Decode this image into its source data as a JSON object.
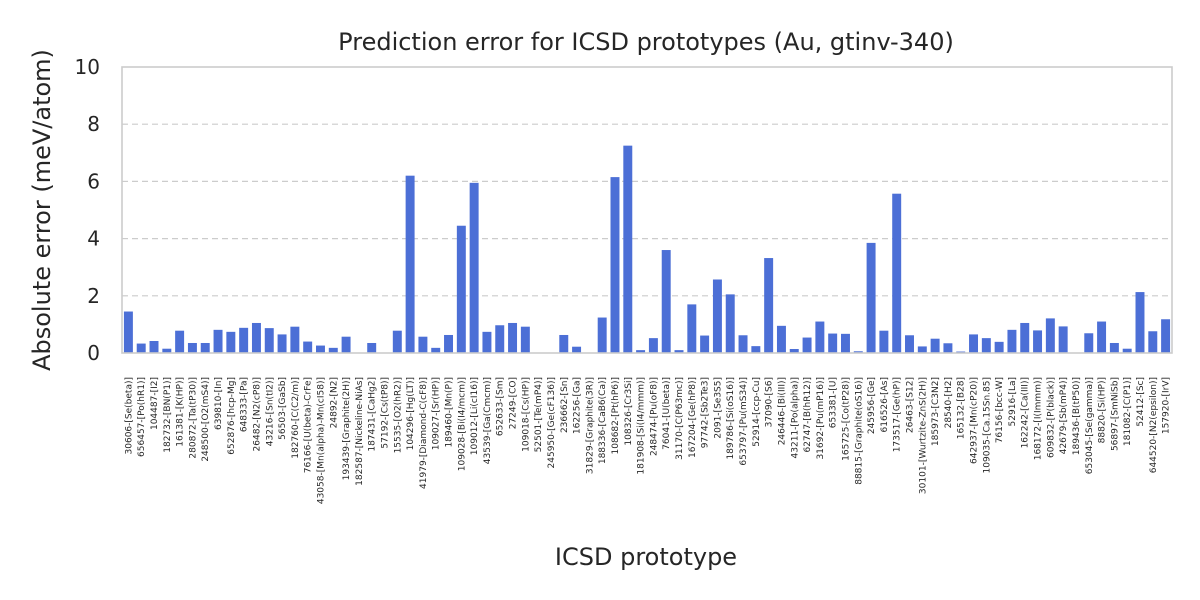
{
  "chart_data": {
    "type": "bar",
    "title": "Prediction error for ICSD prototypes (Au, gtinv-340)",
    "xlabel": "ICSD prototype",
    "ylabel": "Absolute error (meV/atom)",
    "ylim": [
      0,
      10
    ],
    "yticks": [
      0,
      2,
      4,
      6,
      8,
      10
    ],
    "grid": "y-dashed",
    "bar_color": "#4c6fd6",
    "categories": [
      "30606-[Se(beta)]",
      "656457-[Po(hR1)]",
      "104487-[I2]",
      "182732-[BN(P1)]",
      "161381-[K(HP)]",
      "280872-[Ta(tP30)]",
      "248500-[O2(mS4)]",
      "639810-[In]",
      "652876-[hcp-Mg]",
      "648333-[Pa]",
      "26482-[N2(cP8)]",
      "43216-[Sn(tI2)]",
      "56503-[GaSb]",
      "182760-[C(C2/m)]",
      "76166-[U(beta)-CrFe]",
      "43058-[Mn(alpha)-Mn(cI58)]",
      "24892-[N2]",
      "193439-[Graphite(2H)]",
      "182587-[Nickeline-NiAs]",
      "187431-[CaHg2]",
      "57192-[Cs(tP8)]",
      "15535-[O2(hR2)]",
      "104296-[Hg(LT)]",
      "41979-[Diamond-C(cF8)]",
      "109027-[Sr(HP)]",
      "189460-[Mn(P)]",
      "109028-[Bi(I4/mcm)]",
      "109012-[Li(cI16)]",
      "43539-[Ga(Cmcm)]",
      "652633-[Sm]",
      "27249-[CO]",
      "109018-[Cs(HP)]",
      "52501-[Te(mP4)]",
      "245950-[Ge(cF136)]",
      "236662-[Sn]",
      "162256-[Ga]",
      "31829-[Graphite(3R)]",
      "188336-[CaB6(Ca)]",
      "108682-[Pt(hP6)]",
      "108326-[Cr3Si]",
      "181908-[Si(I4/mmm)]",
      "248474-[Pu(oF8)]",
      "76041-[U(beta)]",
      "31170-[C(P63mc)]",
      "167204-[Ge(hP8)]",
      "97742-[Sb2Te3]",
      "2091-[Se3S5]",
      "189786-[Si(oS16)]",
      "653797-[Pu(mS34)]",
      "52914-[ccp-Cu]",
      "37090-[S6]",
      "246446-[Bi(III)]",
      "43211-[Po(alpha)]",
      "62747-[B(hR12)]",
      "31692-[Pu(mP16)]",
      "653381-[U]",
      "165725-[Co(tP28)]",
      "88815-[Graphite(oS16)]",
      "245956-[Ge]",
      "616526-[As]",
      "173517-[Ge(hP)]",
      "26463-[S12]",
      "30101-[Wurtzite-ZnS(2H)]",
      "185973-[C3N2]",
      "28540-[H2]",
      "165132-[B28]",
      "642937-[Mn(cP20)]",
      "109035-[Ca.15Sn.85]",
      "76156-[bcc-W]",
      "52916-[La]",
      "162242-[Ca(III)]",
      "168172-[I(Immm)]",
      "609832-[P(black)]",
      "42679-[Sb(mP4)]",
      "189436-[B(tP50)]",
      "653045-[Se(gamma)]",
      "88820-[Si(HP)]",
      "56897-[SmNiSb]",
      "181082-[C(P1)]",
      "52412-[Sc]",
      "644520-[N2(epsilon)]",
      "157920-[IrV]"
    ],
    "values": [
      1.45,
      0.33,
      0.42,
      0.15,
      0.78,
      0.35,
      0.35,
      0.81,
      0.74,
      0.88,
      1.05,
      0.87,
      0.65,
      0.92,
      0.4,
      0.26,
      0.18,
      0.57,
      0.0,
      0.35,
      0.0,
      0.78,
      6.2,
      0.57,
      0.18,
      0.63,
      4.45,
      5.95,
      0.74,
      0.97,
      1.05,
      0.92,
      0.0,
      0.0,
      0.63,
      0.22,
      0.0,
      1.24,
      6.15,
      7.25,
      0.1,
      0.52,
      3.6,
      0.1,
      1.7,
      0.61,
      2.57,
      2.05,
      0.62,
      0.24,
      3.32,
      0.95,
      0.14,
      0.54,
      1.1,
      0.68,
      0.67,
      0.06,
      3.85,
      0.78,
      5.57,
      0.62,
      0.23,
      0.5,
      0.34,
      0.05,
      0.65,
      0.52,
      0.39,
      0.81,
      1.05,
      0.79,
      1.21,
      0.93,
      0.0,
      0.69,
      1.1,
      0.35,
      0.15,
      2.13,
      0.76,
      1.18
    ]
  }
}
